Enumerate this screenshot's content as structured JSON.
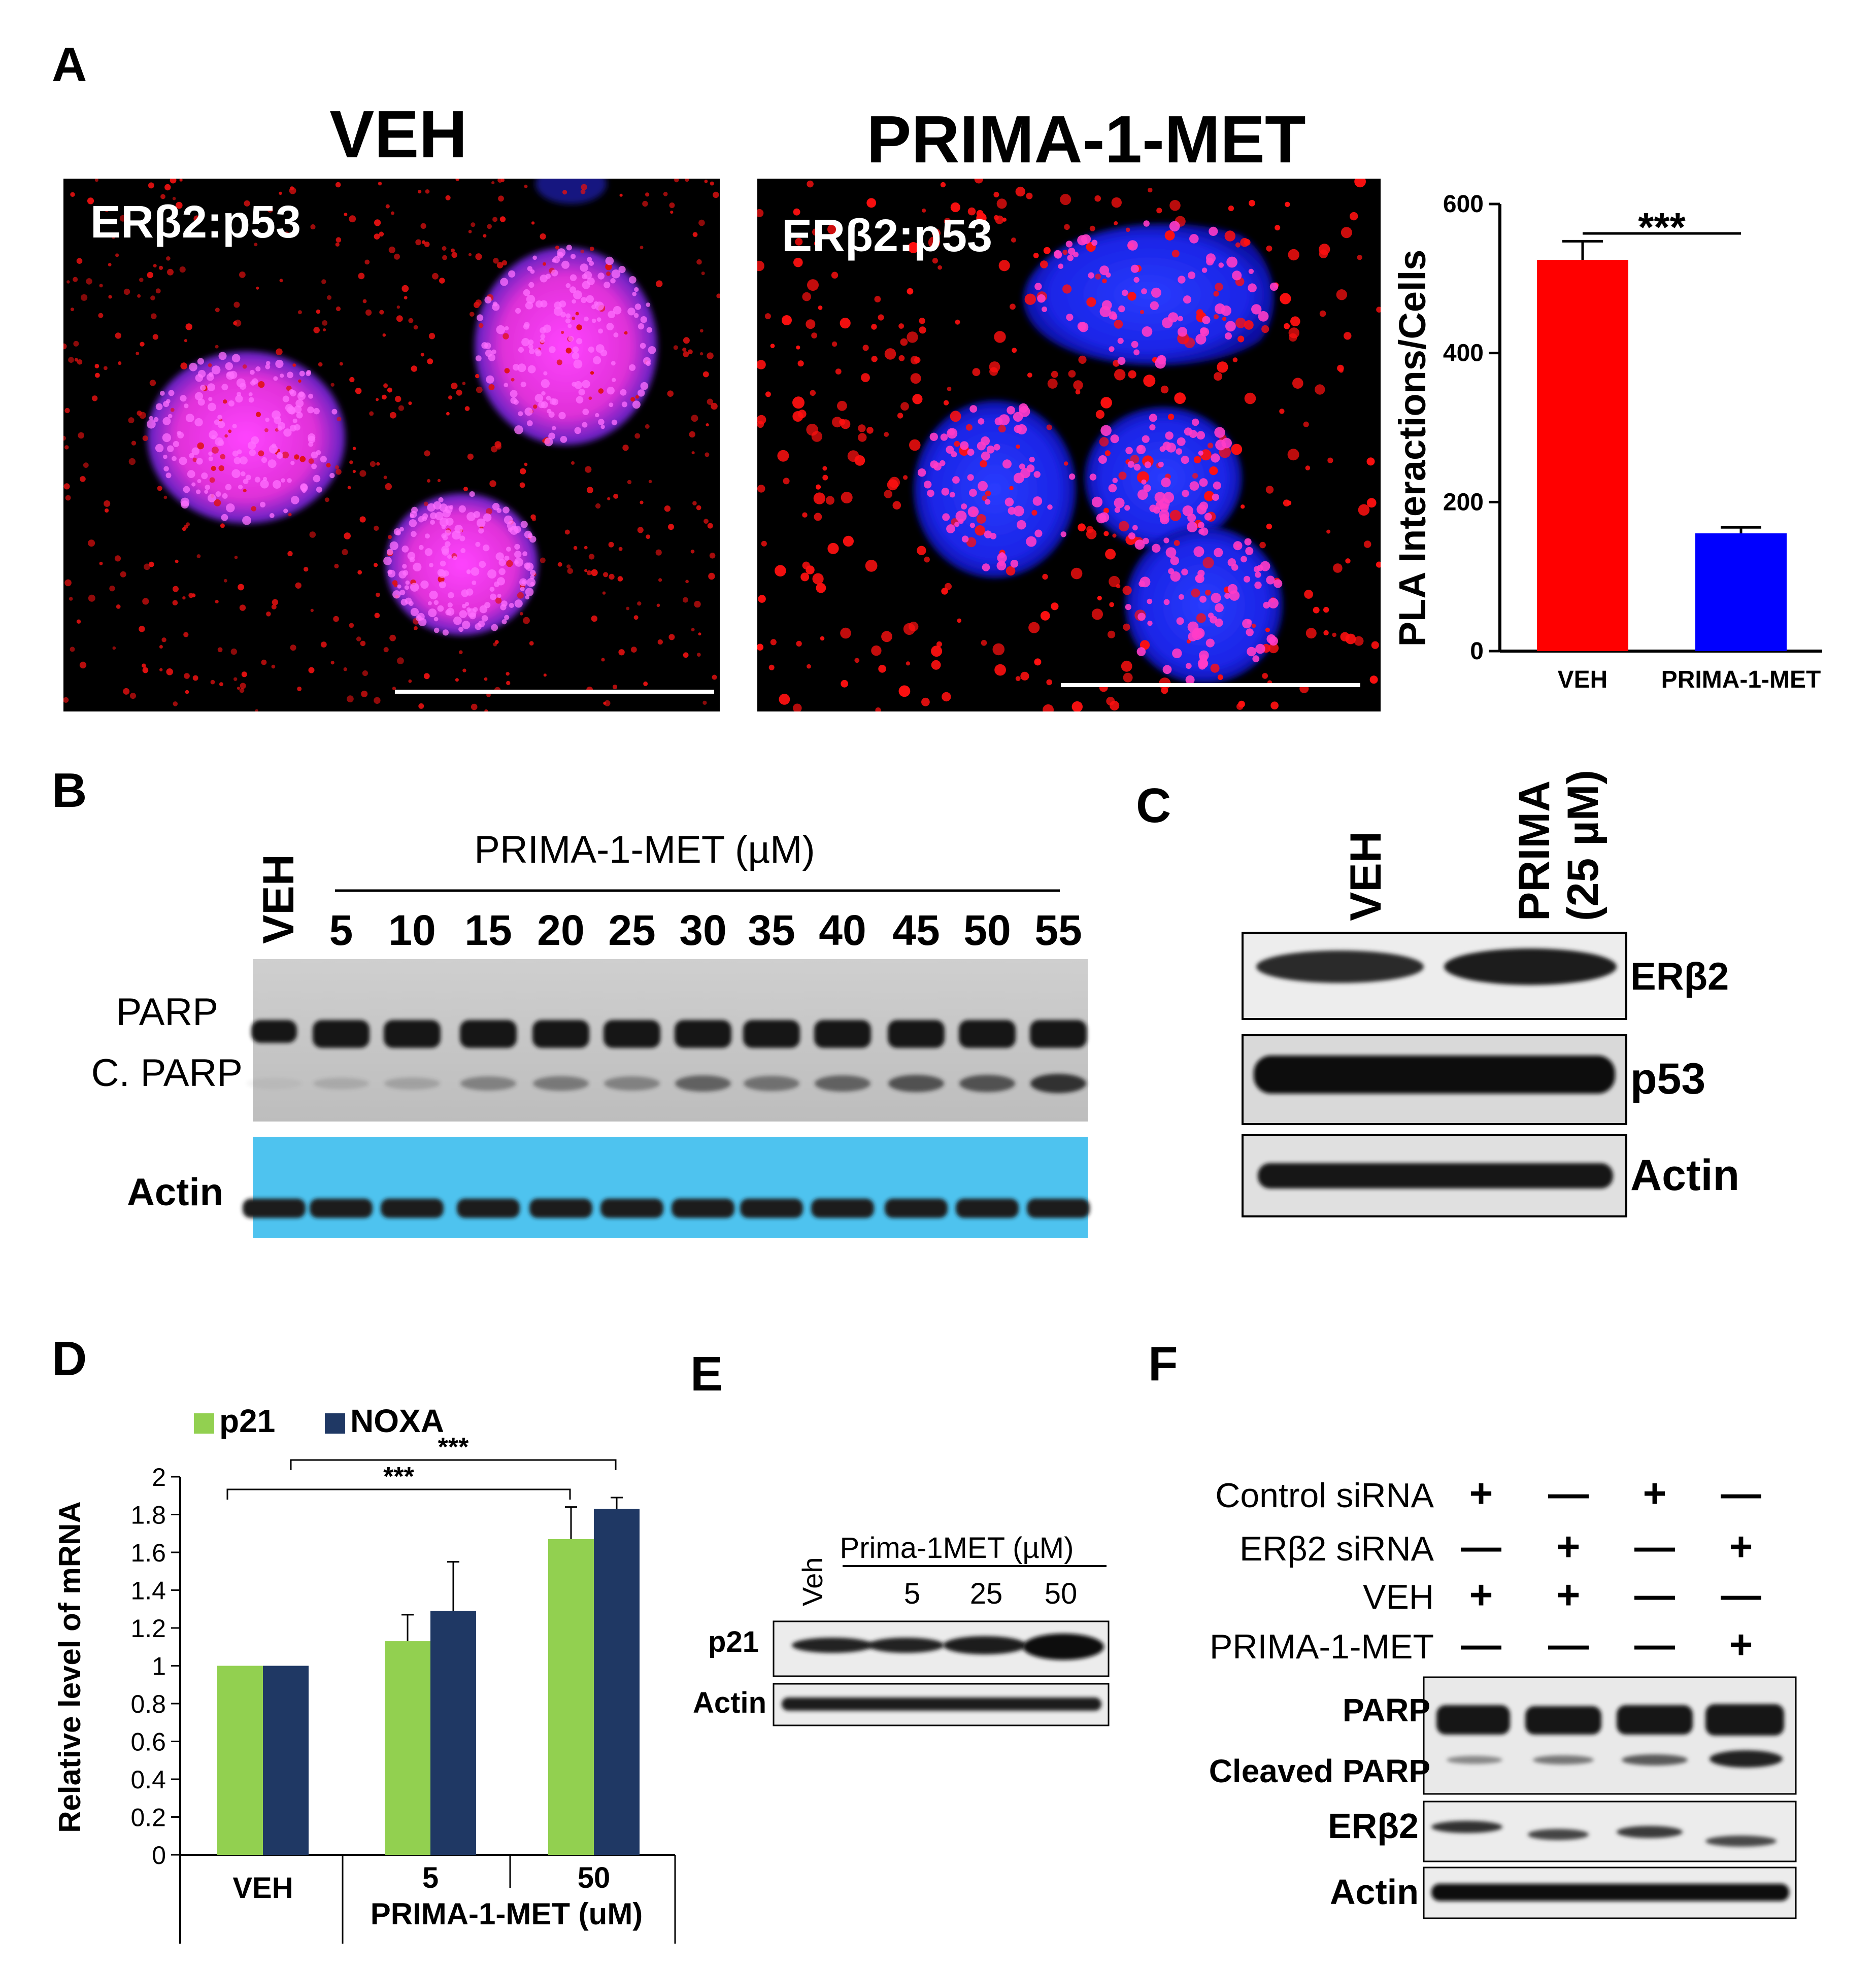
{
  "panels": {
    "A": {
      "letter": "A",
      "veh_title": "VEH",
      "prima_title": "PRIMA-1-MET",
      "micrograph_label": "ERβ2:p53",
      "chart_data": {
        "type": "bar",
        "categories": [
          "VEH",
          "PRIMA-1-MET"
        ],
        "values": [
          525,
          158
        ],
        "errors": [
          25,
          8
        ],
        "colors": [
          "#ff0000",
          "#0000ff"
        ],
        "ylabel": "PLA Interactions/Cells",
        "yticks": [
          "0",
          "200",
          "400",
          "600"
        ],
        "ylim": [
          0,
          600
        ],
        "significance": "***"
      }
    },
    "B": {
      "letter": "B",
      "header": "PRIMA-1-MET (µM)",
      "lanes": [
        "VEH",
        "5",
        "10",
        "15",
        "20",
        "25",
        "30",
        "35",
        "40",
        "45",
        "50",
        "55"
      ],
      "row_labels": [
        "PARP",
        "C. PARP",
        "Actin"
      ]
    },
    "C": {
      "letter": "C",
      "lanes": [
        "VEH",
        "PRIMA",
        "(25 µM)"
      ],
      "row_labels": [
        "ERβ2",
        "p53",
        "Actin"
      ]
    },
    "D": {
      "letter": "D",
      "legend": [
        "p21",
        "NOXA"
      ],
      "colors": [
        "#92d050",
        "#1f3864"
      ],
      "chart_data": {
        "type": "bar",
        "categories": [
          "VEH",
          "5",
          "50"
        ],
        "series": [
          {
            "name": "p21",
            "values": [
              1.0,
              1.13,
              1.67
            ],
            "errors": [
              0,
              0.14,
              0.17
            ]
          },
          {
            "name": "NOXA",
            "values": [
              1.0,
              1.29,
              1.83
            ],
            "errors": [
              0,
              0.26,
              0.06
            ]
          }
        ],
        "ylabel": "Relative level of mRNA",
        "xlabel": "PRIMA-1-MET (uM)",
        "yticks": [
          "0",
          "0.2",
          "0.4",
          "0.6",
          "0.8",
          "1",
          "1.2",
          "1.4",
          "1.6",
          "1.8",
          "2"
        ],
        "ylim": [
          0,
          2
        ],
        "significance": [
          "***",
          "***"
        ]
      }
    },
    "E": {
      "letter": "E",
      "header": "Prima-1MET (µM)",
      "lanes": [
        "Veh",
        "5",
        "25",
        "50"
      ],
      "row_labels": [
        "p21",
        "Actin"
      ]
    },
    "F": {
      "letter": "F",
      "conditions": [
        {
          "label": "Control siRNA",
          "signs": [
            "+",
            "—",
            "+",
            "—"
          ]
        },
        {
          "label": "ERβ2 siRNA",
          "signs": [
            "—",
            "+",
            "—",
            "+"
          ]
        },
        {
          "label": "VEH",
          "signs": [
            "+",
            "+",
            "—",
            "—"
          ]
        },
        {
          "label": "PRIMA-1-MET",
          "signs": [
            "—",
            "—",
            "—",
            "+"
          ]
        }
      ],
      "row_labels": [
        "PARP",
        "Cleaved PARP",
        "ERβ2",
        "Actin"
      ]
    }
  }
}
